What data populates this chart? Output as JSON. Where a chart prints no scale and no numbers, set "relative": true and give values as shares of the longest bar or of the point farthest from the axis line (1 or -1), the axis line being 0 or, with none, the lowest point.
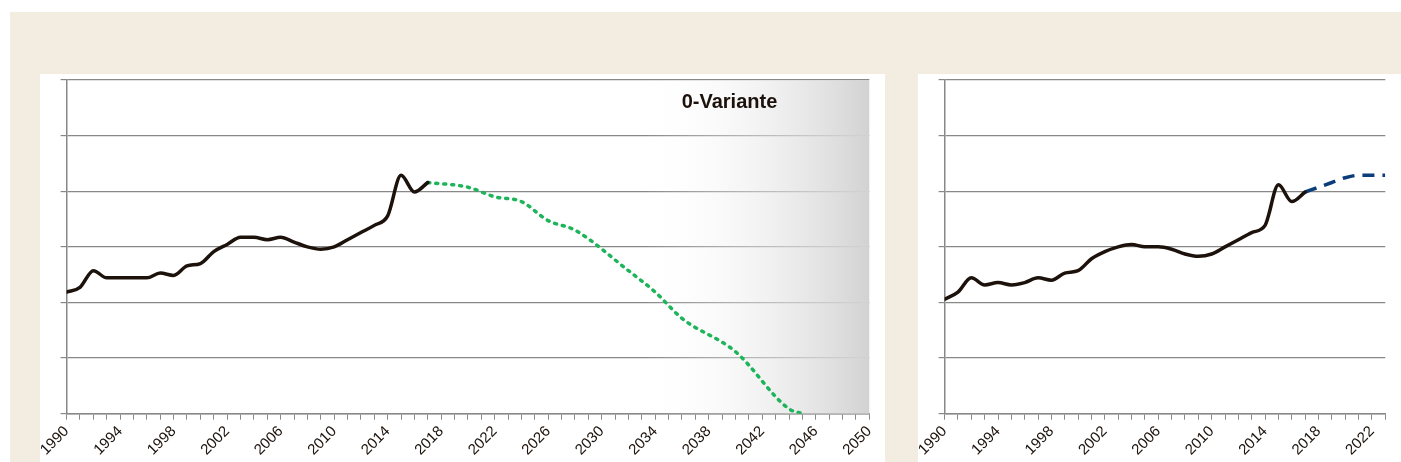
{
  "chart_data": [
    {
      "type": "line",
      "relative": true,
      "grid": "y",
      "legend": false,
      "annotations": [
        "0-Variante"
      ],
      "xlim": [
        1990,
        2050
      ],
      "xticks": [
        1990,
        {
          "value": 1991,
          "label": null
        },
        {
          "value": 1992,
          "label": null
        },
        {
          "value": 1993,
          "label": null
        },
        1994,
        {
          "value": 1995,
          "label": null
        },
        {
          "value": 1996,
          "label": null
        },
        {
          "value": 1997,
          "label": null
        },
        1998,
        {
          "value": 1999,
          "label": null
        },
        {
          "value": 2000,
          "label": null
        },
        {
          "value": 2001,
          "label": null
        },
        2002,
        {
          "value": 2003,
          "label": null
        },
        {
          "value": 2004,
          "label": null
        },
        {
          "value": 2005,
          "label": null
        },
        2006,
        {
          "value": 2007,
          "label": null
        },
        {
          "value": 2008,
          "label": null
        },
        {
          "value": 2009,
          "label": null
        },
        2010,
        {
          "value": 2011,
          "label": null
        },
        {
          "value": 2012,
          "label": null
        },
        {
          "value": 2013,
          "label": null
        },
        2014,
        {
          "value": 2015,
          "label": null
        },
        {
          "value": 2016,
          "label": null
        },
        {
          "value": 2017,
          "label": null
        },
        2018,
        {
          "value": 2019,
          "label": null
        },
        {
          "value": 2020,
          "label": null
        },
        {
          "value": 2021,
          "label": null
        },
        2022,
        {
          "value": 2023,
          "label": null
        },
        {
          "value": 2024,
          "label": null
        },
        {
          "value": 2025,
          "label": null
        },
        2026,
        {
          "value": 2027,
          "label": null
        },
        {
          "value": 2028,
          "label": null
        },
        {
          "value": 2029,
          "label": null
        },
        2030,
        {
          "value": 2031,
          "label": null
        },
        {
          "value": 2032,
          "label": null
        },
        {
          "value": 2033,
          "label": null
        },
        2034,
        {
          "value": 2035,
          "label": null
        },
        {
          "value": 2036,
          "label": null
        },
        {
          "value": 2037,
          "label": null
        },
        2038,
        {
          "value": 2039,
          "label": null
        },
        {
          "value": 2040,
          "label": null
        },
        {
          "value": 2041,
          "label": null
        },
        2042,
        {
          "value": 2043,
          "label": null
        },
        {
          "value": 2044,
          "label": null
        },
        {
          "value": 2045,
          "label": null
        },
        2046,
        {
          "value": 2047,
          "label": null
        },
        {
          "value": 2048,
          "label": null
        },
        {
          "value": 2049,
          "label": null
        },
        2050
      ],
      "bands": [
        {
          "axis": "x",
          "from": 2033,
          "to": 2050,
          "color": "#d2d2d2"
        }
      ],
      "series": [
        {
          "color": "#1c120b",
          "line_style": "solid",
          "x": [
            1990,
            1991,
            1992,
            1993,
            1994,
            1995,
            1996,
            1997,
            1998,
            1999,
            2000,
            2001,
            2002,
            2003,
            2004,
            2005,
            2006,
            2007,
            2008,
            2009,
            2010,
            2011,
            2012,
            2013,
            2014,
            2015,
            2016,
            2017
          ],
          "values": [
            0.51,
            0.53,
            0.6,
            0.57,
            0.57,
            0.57,
            0.57,
            0.59,
            0.58,
            0.62,
            0.63,
            0.68,
            0.71,
            0.74,
            0.74,
            0.73,
            0.74,
            0.72,
            0.7,
            0.69,
            0.7,
            0.73,
            0.76,
            0.79,
            0.83,
            1,
            0.93,
            0.97
          ]
        },
        {
          "color": "#1db45a",
          "line_style": "dotted",
          "x": [
            2017,
            2020,
            2022,
            2024,
            2026,
            2028,
            2032,
            2034,
            2036,
            2040,
            2044,
            2045
          ],
          "values": [
            0.97,
            0.95,
            0.91,
            0.89,
            0.81,
            0.77,
            0.6,
            0.51,
            0.4,
            0.26,
            0.02,
            0
          ]
        }
      ]
    },
    {
      "type": "line",
      "relative": true,
      "grid": "y",
      "legend": false,
      "xlim": [
        1990,
        2023
      ],
      "xticks": [
        1990,
        {
          "value": 1991,
          "label": null
        },
        {
          "value": 1992,
          "label": null
        },
        {
          "value": 1993,
          "label": null
        },
        1994,
        {
          "value": 1995,
          "label": null
        },
        {
          "value": 1996,
          "label": null
        },
        {
          "value": 1997,
          "label": null
        },
        1998,
        {
          "value": 1999,
          "label": null
        },
        {
          "value": 2000,
          "label": null
        },
        {
          "value": 2001,
          "label": null
        },
        2002,
        {
          "value": 2003,
          "label": null
        },
        {
          "value": 2004,
          "label": null
        },
        {
          "value": 2005,
          "label": null
        },
        2006,
        {
          "value": 2007,
          "label": null
        },
        {
          "value": 2008,
          "label": null
        },
        {
          "value": 2009,
          "label": null
        },
        2010,
        {
          "value": 2011,
          "label": null
        },
        {
          "value": 2012,
          "label": null
        },
        {
          "value": 2013,
          "label": null
        },
        2014,
        {
          "value": 2015,
          "label": null
        },
        {
          "value": 2016,
          "label": null
        },
        {
          "value": 2017,
          "label": null
        },
        2018,
        {
          "value": 2019,
          "label": null
        },
        {
          "value": 2020,
          "label": null
        },
        {
          "value": 2021,
          "label": null
        },
        2022,
        {
          "value": 2023,
          "label": null
        }
      ],
      "series": [
        {
          "color": "#1c120b",
          "line_style": "solid",
          "x": [
            1990,
            1991,
            1992,
            1993,
            1994,
            1995,
            1996,
            1997,
            1998,
            1999,
            2000,
            2001,
            2002,
            2003,
            2004,
            2005,
            2006,
            2007,
            2008,
            2009,
            2010,
            2011,
            2012,
            2013,
            2014,
            2015,
            2016,
            2017
          ],
          "values": [
            0.48,
            0.51,
            0.57,
            0.54,
            0.55,
            0.54,
            0.55,
            0.57,
            0.56,
            0.59,
            0.6,
            0.65,
            0.68,
            0.7,
            0.71,
            0.7,
            0.7,
            0.69,
            0.67,
            0.66,
            0.67,
            0.7,
            0.73,
            0.76,
            0.79,
            0.96,
            0.89,
            0.93
          ]
        },
        {
          "color": "#0a3d7a",
          "line_style": "dashed",
          "x": [
            2017,
            2018,
            2019,
            2020,
            2021,
            2022,
            2023
          ],
          "values": [
            0.93,
            0.95,
            0.97,
            0.99,
            1,
            1,
            1
          ]
        }
      ]
    }
  ]
}
